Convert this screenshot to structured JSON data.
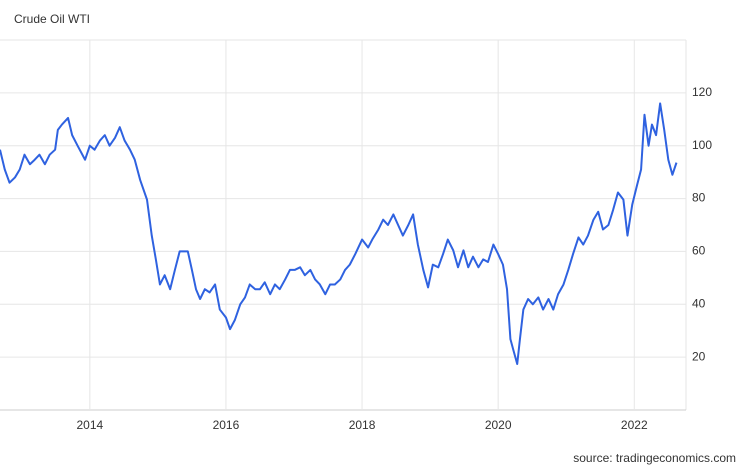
{
  "chart_data": {
    "type": "line",
    "title": "Crude Oil WTI",
    "source": "source: tradingeconomics.com",
    "color": "#2f62e0",
    "grid": true,
    "xlim": [
      2012.68,
      2022.76
    ],
    "xticks": [
      2014,
      2016,
      2018,
      2020,
      2022
    ],
    "ylim": [
      0,
      140
    ],
    "yticks": [
      20,
      40,
      60,
      80,
      100,
      120
    ],
    "x": [
      2012.68,
      2012.75,
      2012.82,
      2012.9,
      2012.97,
      2013.04,
      2013.12,
      2013.19,
      2013.26,
      2013.34,
      2013.41,
      2013.49,
      2013.53,
      2013.59,
      2013.68,
      2013.74,
      2013.82,
      2013.93,
      2014.0,
      2014.07,
      2014.15,
      2014.22,
      2014.29,
      2014.37,
      2014.44,
      2014.51,
      2014.59,
      2014.66,
      2014.74,
      2014.84,
      2014.91,
      2014.97,
      2015.03,
      2015.1,
      2015.18,
      2015.25,
      2015.32,
      2015.44,
      2015.5,
      2015.56,
      2015.62,
      2015.69,
      2015.76,
      2015.84,
      2015.91,
      2016.0,
      2016.06,
      2016.13,
      2016.21,
      2016.28,
      2016.35,
      2016.43,
      2016.5,
      2016.57,
      2016.65,
      2016.72,
      2016.79,
      2016.87,
      2016.94,
      2017.01,
      2017.09,
      2017.16,
      2017.24,
      2017.31,
      2017.38,
      2017.46,
      2017.53,
      2017.6,
      2017.68,
      2017.75,
      2017.82,
      2017.9,
      2018.0,
      2018.09,
      2018.15,
      2018.24,
      2018.31,
      2018.38,
      2018.46,
      2018.53,
      2018.6,
      2018.68,
      2018.75,
      2018.82,
      2018.9,
      2018.97,
      2019.04,
      2019.12,
      2019.19,
      2019.26,
      2019.34,
      2019.41,
      2019.49,
      2019.56,
      2019.63,
      2019.71,
      2019.78,
      2019.85,
      2019.93,
      2020.0,
      2020.07,
      2020.13,
      2020.18,
      2020.22,
      2020.28,
      2020.32,
      2020.37,
      2020.44,
      2020.51,
      2020.59,
      2020.66,
      2020.74,
      2020.81,
      2020.88,
      2020.96,
      2021.03,
      2021.1,
      2021.18,
      2021.25,
      2021.32,
      2021.4,
      2021.47,
      2021.54,
      2021.62,
      2021.69,
      2021.76,
      2021.84,
      2021.9,
      2021.97,
      2022.04,
      2022.1,
      2022.15,
      2022.21,
      2022.26,
      2022.32,
      2022.38,
      2022.44,
      2022.5,
      2022.56,
      2022.62
    ],
    "values": [
      98.5,
      91,
      86,
      88,
      91,
      96.6,
      93,
      94.7,
      96.6,
      93,
      96.6,
      98.5,
      106,
      108,
      110.5,
      104,
      100,
      94.7,
      100,
      98.5,
      102,
      104,
      100,
      103,
      107,
      102,
      98.5,
      94.7,
      87,
      79.6,
      66,
      57,
      47.5,
      51,
      45.7,
      53,
      60,
      60,
      53,
      45.7,
      42,
      45.7,
      44.5,
      47.5,
      38,
      35,
      30.6,
      34,
      40,
      42.6,
      47.5,
      45.7,
      45.7,
      48.3,
      43.8,
      47.5,
      45.7,
      49.4,
      53,
      53,
      54,
      51,
      53,
      49.4,
      47.5,
      43.8,
      47.5,
      47.5,
      49.4,
      53,
      55,
      59,
      64.5,
      61.5,
      64.5,
      68.3,
      72,
      70,
      74,
      70,
      66,
      70,
      74,
      62.6,
      53,
      46.4,
      55,
      54,
      59,
      64.5,
      60.4,
      54,
      60.4,
      54,
      58,
      54,
      57,
      56,
      62.6,
      59,
      55,
      45.7,
      26.8,
      23,
      17.4,
      26.8,
      38,
      42,
      40,
      42.6,
      38,
      42,
      38,
      43.8,
      47.5,
      53,
      59,
      65.3,
      62.6,
      66,
      72,
      75,
      68.3,
      70,
      75.8,
      82.3,
      79.6,
      66,
      77.7,
      85,
      91,
      111.7,
      100,
      108,
      104,
      116,
      106,
      94.7,
      89,
      93.6
    ]
  }
}
